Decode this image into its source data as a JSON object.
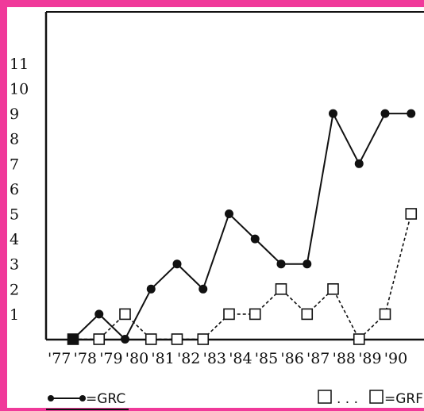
{
  "chart_data": {
    "type": "line",
    "x": [
      "'77",
      "'78",
      "'79",
      "'80",
      "'81",
      "'82",
      "'83",
      "'84",
      "'85",
      "'86",
      "'87",
      "'88",
      "'89",
      "'90"
    ],
    "y_ticks": [
      "1",
      "2",
      "3",
      "4",
      "5",
      "6",
      "7",
      "8",
      "9",
      "10",
      "11"
    ],
    "ylim": [
      0,
      12
    ],
    "grid": false,
    "series": [
      {
        "name": "GRC",
        "style": "solid-line-filled-circle",
        "points": [
          [
            0,
            0
          ],
          [
            0.5,
            1
          ],
          [
            1,
            0
          ],
          [
            1.5,
            2
          ],
          [
            2,
            3
          ],
          [
            2.5,
            2
          ],
          [
            3,
            5
          ],
          [
            3.5,
            4
          ],
          [
            4,
            3
          ],
          [
            4.5,
            3
          ],
          [
            5,
            9
          ],
          [
            5.5,
            7
          ],
          [
            6,
            9
          ],
          [
            6.5,
            9
          ]
        ]
      },
      {
        "name": "GRF",
        "style": "dashed-line-open-square",
        "points": [
          [
            0,
            0
          ],
          [
            0.5,
            0
          ],
          [
            1,
            1
          ],
          [
            1.5,
            0
          ],
          [
            2,
            0
          ],
          [
            2.5,
            0
          ],
          [
            3,
            1
          ],
          [
            3.5,
            1
          ],
          [
            4,
            2
          ],
          [
            4.5,
            1
          ],
          [
            5,
            2
          ],
          [
            5.5,
            0
          ],
          [
            6,
            1
          ],
          [
            6.5,
            5
          ]
        ]
      }
    ],
    "legend": {
      "position": "bottom",
      "grc_text": "=GRC",
      "grf_text": "=GRF",
      "grf_dots": ". . ."
    },
    "colors": {
      "border": "#f0399a",
      "ink": "#111111"
    }
  }
}
